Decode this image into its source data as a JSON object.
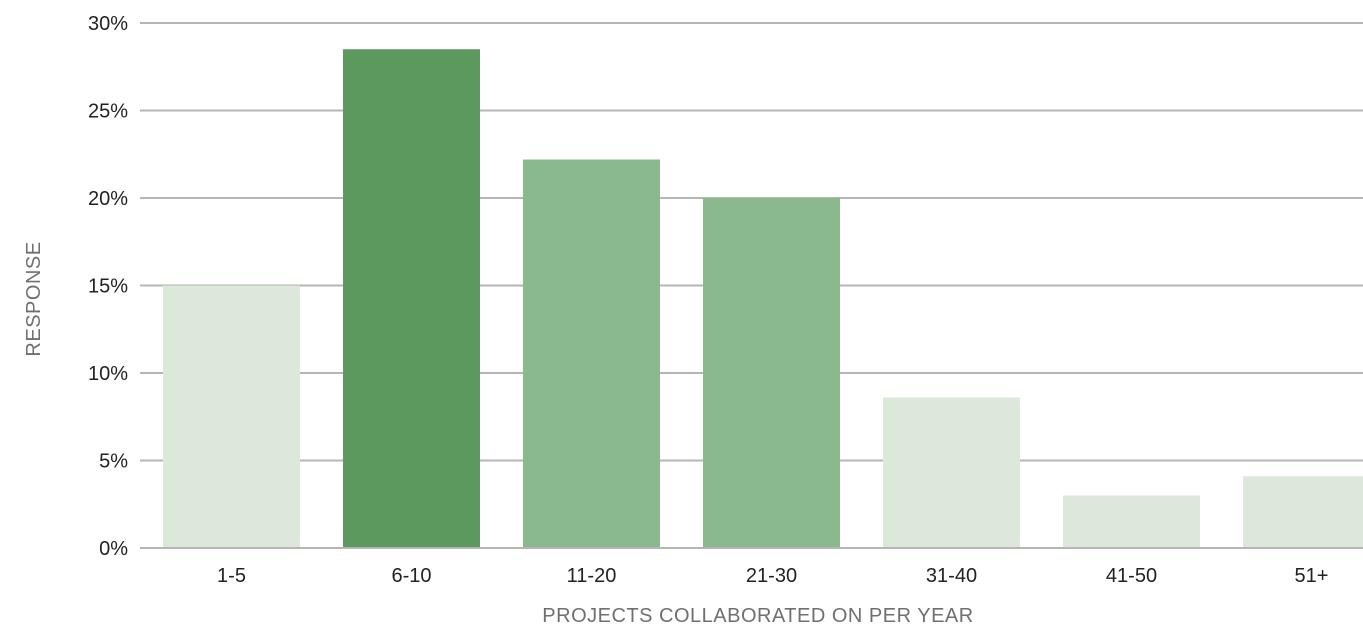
{
  "chart_data": {
    "type": "bar",
    "title": "",
    "xlabel": "PROJECTS COLLABORATED ON PER YEAR",
    "ylabel": "RESPONSE",
    "categories": [
      "1-5",
      "6-10",
      "11-20",
      "21-30",
      "31-40",
      "41-50",
      "51+"
    ],
    "values": [
      15,
      28.5,
      22.2,
      20,
      8.6,
      3,
      4.1
    ],
    "bar_colors": [
      "#dce8d9",
      "#5c995f",
      "#8bb98e",
      "#8bb98e",
      "#dce8d9",
      "#dce8d9",
      "#dce8d9"
    ],
    "ylim": [
      0,
      30
    ],
    "y_ticks": [
      0,
      5,
      10,
      15,
      20,
      25,
      30
    ],
    "y_tick_labels": [
      "0%",
      "5%",
      "10%",
      "15%",
      "20%",
      "25%",
      "30%"
    ],
    "grid": true,
    "grid_color": "#b5b5b5",
    "legend": "none"
  }
}
